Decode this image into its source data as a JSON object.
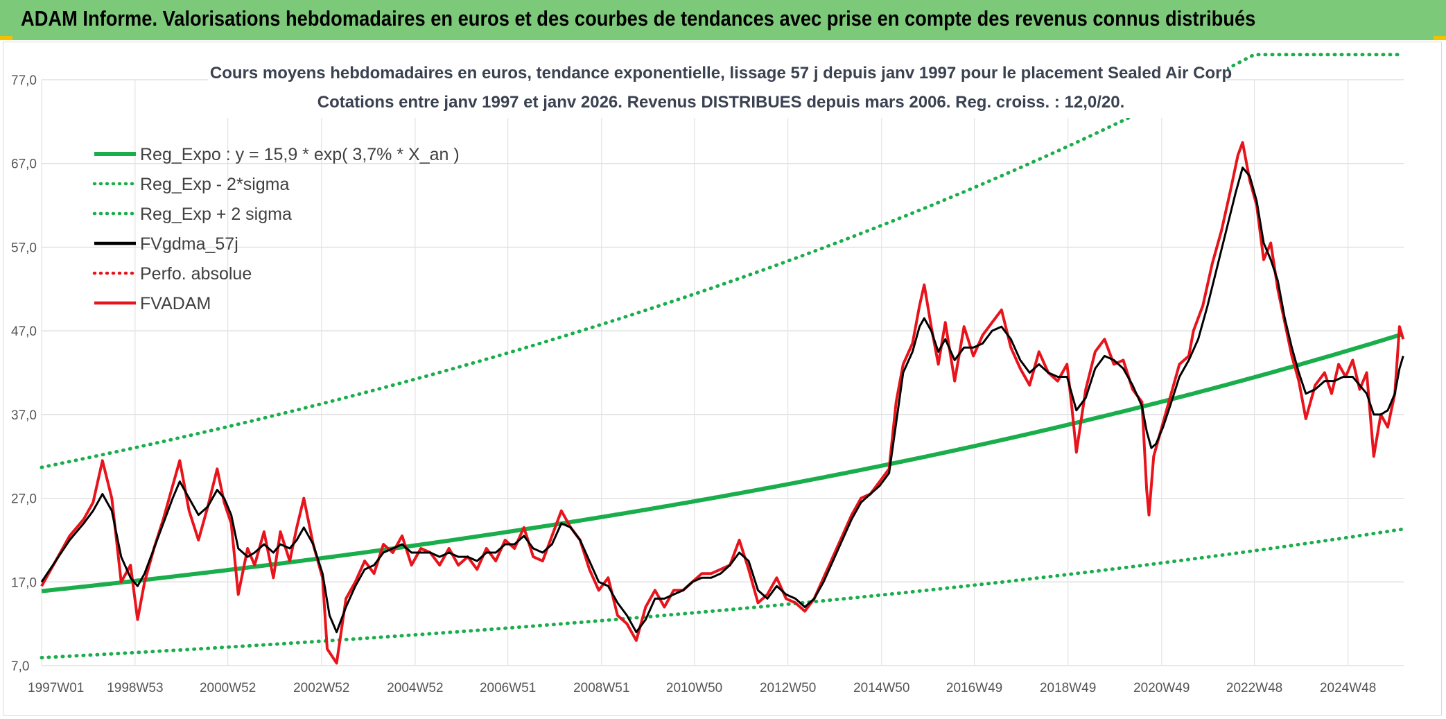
{
  "header": {
    "title": "ADAM Informe. Valorisations hebdomadaires en euros et des courbes de tendances avec prise en compte des revenus connus distribués"
  },
  "colors": {
    "banner": "#7dc97a",
    "reg_expo": "#1aad4b",
    "fvgdma": "#000000",
    "fvadam": "#e8141c",
    "perfo": "#e8141c"
  },
  "chart_data": {
    "type": "line",
    "title": "Cours moyens hebdomadaires en euros, tendance exponentielle, lissage 57 j depuis janv 1997 pour le placement Sealed Air Corp",
    "subtitle": "Cotations entre janv 1997 et janv 2026. Revenus DISTRIBUES depuis mars 2006. Reg. croiss. : 12,0/20.",
    "xlabel": "",
    "ylabel": "",
    "ylim": [
      7,
      77
    ],
    "y_ticks": [
      "7,0",
      "17,0",
      "27,0",
      "37,0",
      "47,0",
      "57,0",
      "67,0",
      "77,0"
    ],
    "x_ticks": [
      "1997W01",
      "1998W53",
      "2000W52",
      "2002W52",
      "2004W52",
      "2006W51",
      "2008W51",
      "2010W50",
      "2012W50",
      "2014W50",
      "2016W49",
      "2018W49",
      "2020W49",
      "2022W48",
      "2024W48"
    ],
    "x_range": [
      "1997W01",
      "2026W03"
    ],
    "grid": true,
    "legend_position": "top-left",
    "legend": [
      {
        "name": "Reg_Expo : y = 15,9 * exp( 3,7% *  X_an )",
        "style": "solid",
        "color": "#1aad4b"
      },
      {
        "name": "Reg_Exp - 2*sigma",
        "style": "dotted",
        "color": "#1aad4b"
      },
      {
        "name": "Reg_Exp + 2 sigma",
        "style": "dotted",
        "color": "#1aad4b"
      },
      {
        "name": "FVgdma_57j",
        "style": "solid",
        "color": "#000000"
      },
      {
        "name": "Perfo. absolue",
        "style": "dotted",
        "color": "#e8141c"
      },
      {
        "name": "FVADAM",
        "style": "solid",
        "color": "#e8141c"
      }
    ],
    "trend": {
      "a": 15.9,
      "b": 0.037,
      "lower_factor": 0.5,
      "upper_factor": 1.93,
      "upper_cap": 80
    },
    "fvadam": [
      [
        1997.0,
        16.5
      ],
      [
        1997.3,
        19.5
      ],
      [
        1997.6,
        22.5
      ],
      [
        1997.9,
        24.5
      ],
      [
        1998.1,
        26.5
      ],
      [
        1998.3,
        31.5
      ],
      [
        1998.5,
        27
      ],
      [
        1998.7,
        17
      ],
      [
        1998.9,
        19
      ],
      [
        1999.05,
        12.5
      ],
      [
        1999.2,
        17
      ],
      [
        1999.4,
        21
      ],
      [
        1999.6,
        24.5
      ],
      [
        1999.8,
        28.5
      ],
      [
        1999.95,
        31.5
      ],
      [
        2000.15,
        25.5
      ],
      [
        2000.35,
        22
      ],
      [
        2000.55,
        26
      ],
      [
        2000.75,
        30.5
      ],
      [
        2000.9,
        26.5
      ],
      [
        2001.05,
        24
      ],
      [
        2001.2,
        15.5
      ],
      [
        2001.4,
        21
      ],
      [
        2001.55,
        19
      ],
      [
        2001.75,
        23
      ],
      [
        2001.95,
        17.5
      ],
      [
        2002.1,
        23
      ],
      [
        2002.3,
        19.5
      ],
      [
        2002.45,
        23.5
      ],
      [
        2002.6,
        27
      ],
      [
        2002.8,
        21.5
      ],
      [
        2003.0,
        17.5
      ],
      [
        2003.1,
        9
      ],
      [
        2003.3,
        7.3
      ],
      [
        2003.5,
        15
      ],
      [
        2003.7,
        17
      ],
      [
        2003.9,
        19.5
      ],
      [
        2004.1,
        18
      ],
      [
        2004.3,
        21.5
      ],
      [
        2004.5,
        20.5
      ],
      [
        2004.7,
        22.5
      ],
      [
        2004.9,
        19
      ],
      [
        2005.1,
        21
      ],
      [
        2005.3,
        20.5
      ],
      [
        2005.5,
        19
      ],
      [
        2005.7,
        21
      ],
      [
        2005.9,
        19
      ],
      [
        2006.1,
        20
      ],
      [
        2006.3,
        18.5
      ],
      [
        2006.5,
        21
      ],
      [
        2006.7,
        19.5
      ],
      [
        2006.9,
        22
      ],
      [
        2007.1,
        21
      ],
      [
        2007.3,
        23.5
      ],
      [
        2007.5,
        20
      ],
      [
        2007.7,
        19.5
      ],
      [
        2007.9,
        22.5
      ],
      [
        2008.1,
        25.5
      ],
      [
        2008.3,
        23.5
      ],
      [
        2008.5,
        22
      ],
      [
        2008.7,
        18.5
      ],
      [
        2008.9,
        16
      ],
      [
        2009.1,
        17.5
      ],
      [
        2009.3,
        13
      ],
      [
        2009.5,
        12
      ],
      [
        2009.7,
        10
      ],
      [
        2009.9,
        14
      ],
      [
        2010.1,
        16
      ],
      [
        2010.3,
        14
      ],
      [
        2010.5,
        16
      ],
      [
        2010.7,
        16
      ],
      [
        2010.9,
        17
      ],
      [
        2011.1,
        18
      ],
      [
        2011.3,
        18
      ],
      [
        2011.5,
        18.5
      ],
      [
        2011.7,
        19
      ],
      [
        2011.9,
        22
      ],
      [
        2012.1,
        18.5
      ],
      [
        2012.3,
        14.5
      ],
      [
        2012.5,
        15.5
      ],
      [
        2012.7,
        17.5
      ],
      [
        2012.9,
        15
      ],
      [
        2013.1,
        14.5
      ],
      [
        2013.3,
        13.5
      ],
      [
        2013.5,
        15
      ],
      [
        2013.7,
        17.5
      ],
      [
        2013.9,
        20
      ],
      [
        2014.1,
        22.5
      ],
      [
        2014.3,
        25
      ],
      [
        2014.5,
        27
      ],
      [
        2014.7,
        27.5
      ],
      [
        2014.9,
        29
      ],
      [
        2015.1,
        30.5
      ],
      [
        2015.25,
        38.5
      ],
      [
        2015.4,
        43
      ],
      [
        2015.6,
        45.5
      ],
      [
        2015.75,
        50
      ],
      [
        2015.85,
        52.5
      ],
      [
        2016.0,
        47.5
      ],
      [
        2016.15,
        43
      ],
      [
        2016.3,
        48
      ],
      [
        2016.5,
        41
      ],
      [
        2016.7,
        47.5
      ],
      [
        2016.9,
        44
      ],
      [
        2017.1,
        46.5
      ],
      [
        2017.3,
        48
      ],
      [
        2017.5,
        49.5
      ],
      [
        2017.7,
        45
      ],
      [
        2017.9,
        42.5
      ],
      [
        2018.1,
        40.5
      ],
      [
        2018.3,
        44.5
      ],
      [
        2018.5,
        42
      ],
      [
        2018.7,
        41
      ],
      [
        2018.9,
        43
      ],
      [
        2019.0,
        38
      ],
      [
        2019.1,
        32.5
      ],
      [
        2019.3,
        40
      ],
      [
        2019.5,
        44.5
      ],
      [
        2019.7,
        46
      ],
      [
        2019.9,
        43
      ],
      [
        2020.1,
        43.5
      ],
      [
        2020.3,
        40
      ],
      [
        2020.5,
        38.5
      ],
      [
        2020.6,
        28
      ],
      [
        2020.65,
        25
      ],
      [
        2020.75,
        32
      ],
      [
        2020.9,
        35
      ],
      [
        2021.1,
        39
      ],
      [
        2021.3,
        43
      ],
      [
        2021.5,
        44
      ],
      [
        2021.6,
        47
      ],
      [
        2021.8,
        50
      ],
      [
        2022.0,
        55
      ],
      [
        2022.2,
        59
      ],
      [
        2022.4,
        64
      ],
      [
        2022.55,
        68
      ],
      [
        2022.65,
        69.5
      ],
      [
        2022.8,
        65
      ],
      [
        2022.95,
        62
      ],
      [
        2023.1,
        55.5
      ],
      [
        2023.25,
        57.5
      ],
      [
        2023.4,
        52
      ],
      [
        2023.55,
        48
      ],
      [
        2023.7,
        44
      ],
      [
        2023.85,
        41
      ],
      [
        2024.0,
        36.5
      ],
      [
        2024.2,
        40.5
      ],
      [
        2024.4,
        42
      ],
      [
        2024.55,
        39.5
      ],
      [
        2024.7,
        43
      ],
      [
        2024.85,
        41.5
      ],
      [
        2025.0,
        43.5
      ],
      [
        2025.15,
        40
      ],
      [
        2025.3,
        42
      ],
      [
        2025.45,
        32
      ],
      [
        2025.6,
        37
      ],
      [
        2025.75,
        35.5
      ],
      [
        2025.9,
        39.5
      ],
      [
        2026.0,
        47.5
      ],
      [
        2026.08,
        46
      ]
    ],
    "fvgdma": [
      [
        1997.0,
        17
      ],
      [
        1997.3,
        19.5
      ],
      [
        1997.6,
        22
      ],
      [
        1997.9,
        24
      ],
      [
        1998.1,
        25.5
      ],
      [
        1998.3,
        27.5
      ],
      [
        1998.5,
        25.5
      ],
      [
        1998.7,
        20
      ],
      [
        1998.9,
        17.5
      ],
      [
        1999.05,
        16.5
      ],
      [
        1999.2,
        18
      ],
      [
        1999.4,
        21
      ],
      [
        1999.6,
        24
      ],
      [
        1999.8,
        27
      ],
      [
        1999.95,
        29
      ],
      [
        2000.15,
        27
      ],
      [
        2000.35,
        25
      ],
      [
        2000.55,
        26
      ],
      [
        2000.75,
        28
      ],
      [
        2000.9,
        27
      ],
      [
        2001.05,
        25
      ],
      [
        2001.2,
        21
      ],
      [
        2001.4,
        20
      ],
      [
        2001.55,
        20.5
      ],
      [
        2001.75,
        21.5
      ],
      [
        2001.95,
        20.5
      ],
      [
        2002.1,
        21.5
      ],
      [
        2002.3,
        21
      ],
      [
        2002.45,
        22
      ],
      [
        2002.6,
        23.5
      ],
      [
        2002.8,
        21.5
      ],
      [
        2003.0,
        18
      ],
      [
        2003.15,
        13
      ],
      [
        2003.3,
        11
      ],
      [
        2003.5,
        14
      ],
      [
        2003.7,
        16.5
      ],
      [
        2003.9,
        18.5
      ],
      [
        2004.1,
        19
      ],
      [
        2004.3,
        20.5
      ],
      [
        2004.5,
        21
      ],
      [
        2004.7,
        21.5
      ],
      [
        2004.9,
        20.5
      ],
      [
        2005.1,
        20.5
      ],
      [
        2005.3,
        20.5
      ],
      [
        2005.5,
        20
      ],
      [
        2005.7,
        20.5
      ],
      [
        2005.9,
        20
      ],
      [
        2006.1,
        20
      ],
      [
        2006.3,
        19.5
      ],
      [
        2006.5,
        20.5
      ],
      [
        2006.7,
        20.5
      ],
      [
        2006.9,
        21.5
      ],
      [
        2007.1,
        21.5
      ],
      [
        2007.3,
        22.5
      ],
      [
        2007.5,
        21
      ],
      [
        2007.7,
        20.5
      ],
      [
        2007.9,
        21.5
      ],
      [
        2008.1,
        24
      ],
      [
        2008.3,
        23.5
      ],
      [
        2008.5,
        22
      ],
      [
        2008.7,
        19.5
      ],
      [
        2008.9,
        17
      ],
      [
        2009.1,
        16.5
      ],
      [
        2009.3,
        14.5
      ],
      [
        2009.5,
        13
      ],
      [
        2009.7,
        11
      ],
      [
        2009.9,
        12.5
      ],
      [
        2010.1,
        15
      ],
      [
        2010.3,
        15
      ],
      [
        2010.5,
        15.5
      ],
      [
        2010.7,
        16
      ],
      [
        2010.9,
        17
      ],
      [
        2011.1,
        17.5
      ],
      [
        2011.3,
        17.5
      ],
      [
        2011.5,
        18
      ],
      [
        2011.7,
        19
      ],
      [
        2011.9,
        20.5
      ],
      [
        2012.1,
        19.5
      ],
      [
        2012.3,
        16
      ],
      [
        2012.5,
        15
      ],
      [
        2012.7,
        16.5
      ],
      [
        2012.9,
        15.5
      ],
      [
        2013.1,
        15
      ],
      [
        2013.3,
        14
      ],
      [
        2013.5,
        15
      ],
      [
        2013.7,
        17
      ],
      [
        2013.9,
        19.5
      ],
      [
        2014.1,
        22
      ],
      [
        2014.3,
        24.5
      ],
      [
        2014.5,
        26.5
      ],
      [
        2014.7,
        27.5
      ],
      [
        2014.9,
        28.5
      ],
      [
        2015.1,
        30
      ],
      [
        2015.25,
        36
      ],
      [
        2015.4,
        42
      ],
      [
        2015.6,
        44.5
      ],
      [
        2015.75,
        47.5
      ],
      [
        2015.85,
        48.5
      ],
      [
        2016.0,
        47
      ],
      [
        2016.15,
        44.5
      ],
      [
        2016.3,
        46
      ],
      [
        2016.5,
        43.5
      ],
      [
        2016.7,
        45
      ],
      [
        2016.9,
        45
      ],
      [
        2017.1,
        45.5
      ],
      [
        2017.3,
        47
      ],
      [
        2017.5,
        47.5
      ],
      [
        2017.7,
        46
      ],
      [
        2017.9,
        43.5
      ],
      [
        2018.1,
        42
      ],
      [
        2018.3,
        43
      ],
      [
        2018.5,
        42
      ],
      [
        2018.7,
        41.5
      ],
      [
        2018.9,
        41.5
      ],
      [
        2019.0,
        39.5
      ],
      [
        2019.1,
        37.5
      ],
      [
        2019.3,
        39
      ],
      [
        2019.5,
        42.5
      ],
      [
        2019.7,
        44
      ],
      [
        2019.9,
        43.5
      ],
      [
        2020.1,
        42.5
      ],
      [
        2020.3,
        40.5
      ],
      [
        2020.5,
        38
      ],
      [
        2020.6,
        35
      ],
      [
        2020.7,
        33
      ],
      [
        2020.8,
        33.5
      ],
      [
        2020.95,
        35.5
      ],
      [
        2021.1,
        38
      ],
      [
        2021.3,
        41.5
      ],
      [
        2021.5,
        43.5
      ],
      [
        2021.7,
        46
      ],
      [
        2021.9,
        50
      ],
      [
        2022.1,
        54.5
      ],
      [
        2022.3,
        59
      ],
      [
        2022.5,
        63.5
      ],
      [
        2022.65,
        66.5
      ],
      [
        2022.8,
        65.5
      ],
      [
        2022.95,
        62.5
      ],
      [
        2023.1,
        57.5
      ],
      [
        2023.25,
        55.5
      ],
      [
        2023.4,
        53
      ],
      [
        2023.55,
        48.5
      ],
      [
        2023.7,
        45
      ],
      [
        2023.85,
        42
      ],
      [
        2024.0,
        39.5
      ],
      [
        2024.2,
        40
      ],
      [
        2024.4,
        41
      ],
      [
        2024.6,
        41
      ],
      [
        2024.8,
        41.5
      ],
      [
        2025.0,
        41.5
      ],
      [
        2025.15,
        40.5
      ],
      [
        2025.3,
        39.5
      ],
      [
        2025.45,
        37
      ],
      [
        2025.6,
        37
      ],
      [
        2025.75,
        37.5
      ],
      [
        2025.9,
        39.5
      ],
      [
        2026.0,
        42.5
      ],
      [
        2026.08,
        44
      ]
    ]
  }
}
